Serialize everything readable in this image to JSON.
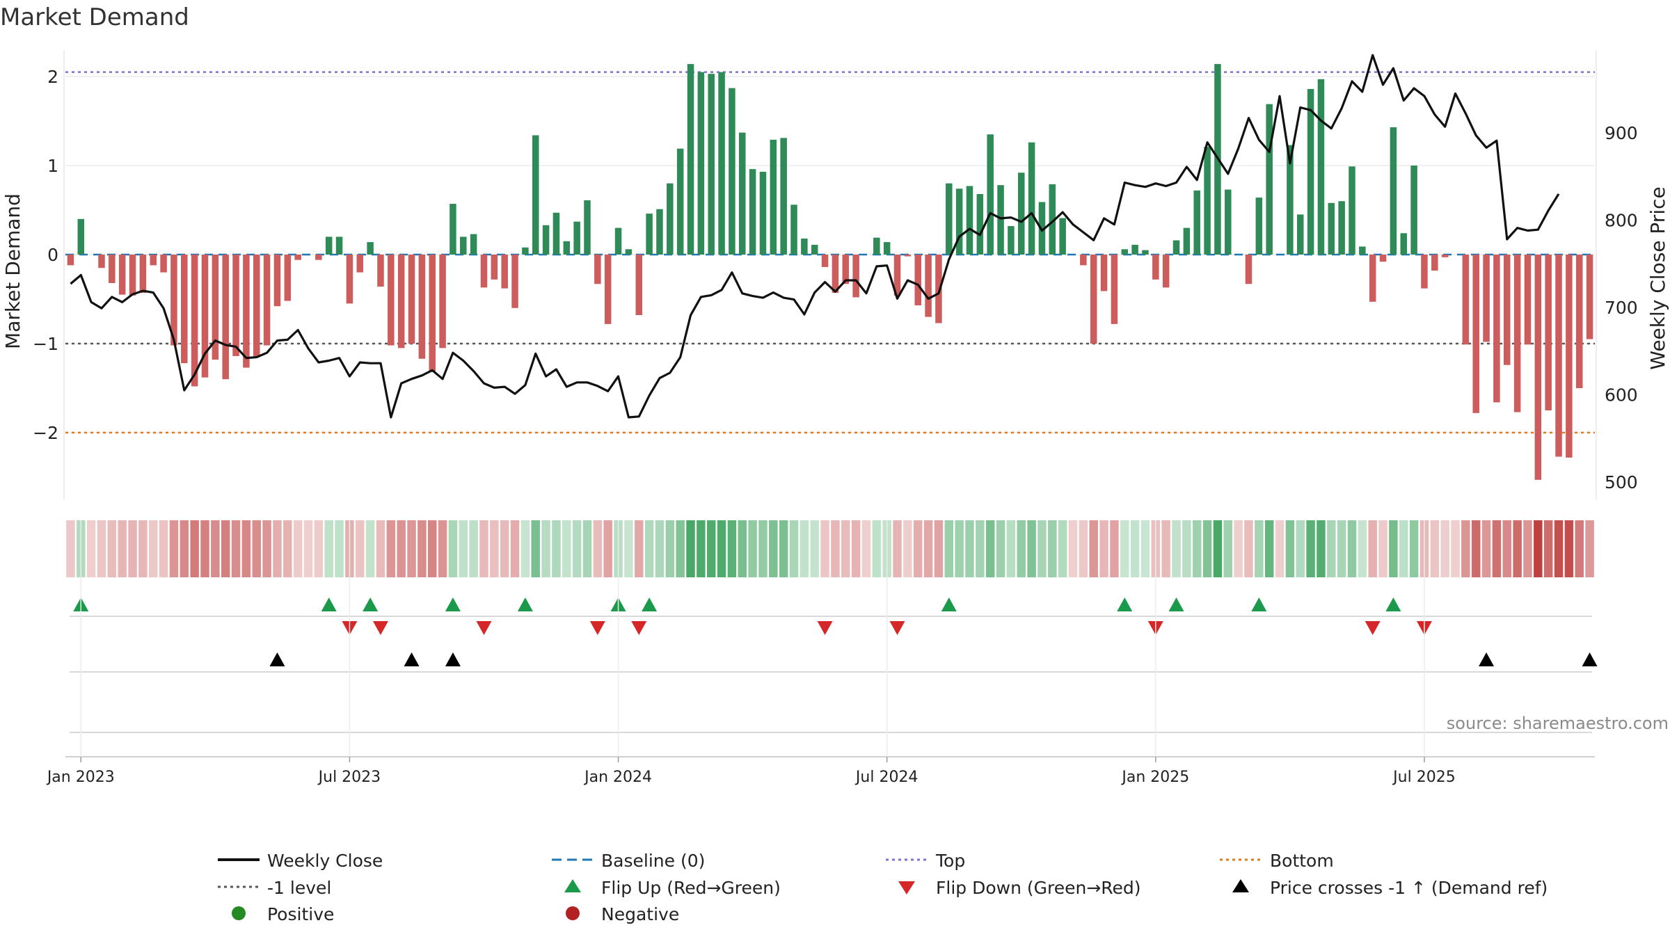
{
  "chart_data": {
    "type": "bar",
    "title": "Market Demand",
    "ylabel_left": "Market Demand",
    "ylabel_right": "Weekly Close Price",
    "source": "source: sharemaestro.com",
    "ylim_left": [
      -2.75,
      2.25
    ],
    "ylim_right": [
      480,
      990
    ],
    "yticks_left": [
      2,
      1,
      0,
      -1,
      -2
    ],
    "yticks_left_labels": [
      "2",
      "1",
      "0",
      "−1",
      "−2"
    ],
    "yticks_right": [
      900,
      800,
      700,
      600,
      500
    ],
    "yticks_right_labels": [
      "900",
      "800",
      "700",
      "600",
      "500"
    ],
    "xticks": [
      1,
      27,
      53,
      79,
      105,
      131
    ],
    "xtick_labels": [
      "Jan 2023",
      "Jul 2023",
      "Jan 2024",
      "Jul 2024",
      "Jan 2025",
      "Jul 2025"
    ],
    "reference_lines": {
      "top": 2.05,
      "minus_one": -1,
      "bottom": -2,
      "baseline": 0
    },
    "demand": [
      -0.12,
      0.4,
      0.0,
      -0.15,
      -0.32,
      -0.45,
      -0.46,
      -0.43,
      -0.12,
      -0.2,
      -1.02,
      -1.22,
      -1.48,
      -1.38,
      -1.18,
      -1.4,
      -1.14,
      -1.27,
      -1.14,
      -1.02,
      -0.58,
      -0.52,
      -0.06,
      0.0,
      -0.06,
      0.2,
      0.2,
      -0.55,
      -0.2,
      0.14,
      -0.36,
      -1.02,
      -1.05,
      -1.0,
      -1.17,
      -1.32,
      -1.05,
      0.57,
      0.2,
      0.23,
      -0.37,
      -0.28,
      -0.38,
      -0.6,
      0.08,
      1.34,
      0.33,
      0.47,
      0.15,
      0.37,
      0.61,
      -0.33,
      -0.78,
      0.3,
      0.06,
      -0.68,
      0.46,
      0.51,
      0.8,
      1.19,
      2.14,
      2.05,
      2.03,
      2.05,
      1.87,
      1.37,
      0.96,
      0.93,
      1.29,
      1.31,
      0.56,
      0.18,
      0.11,
      -0.14,
      -0.43,
      -0.33,
      -0.48,
      0.0,
      0.19,
      0.14,
      -0.46,
      -0.02,
      -0.57,
      -0.7,
      -0.77,
      0.8,
      0.74,
      0.77,
      0.68,
      1.35,
      0.78,
      0.32,
      0.92,
      1.26,
      0.59,
      0.79,
      0.41,
      0.0,
      -0.12,
      -1.0,
      -0.41,
      -0.78,
      0.06,
      0.11,
      0.05,
      -0.28,
      -0.37,
      0.16,
      0.3,
      0.72,
      1.21,
      2.14,
      0.73,
      0.0,
      -0.33,
      0.64,
      1.69,
      0.0,
      1.23,
      0.45,
      1.86,
      1.97,
      0.58,
      0.6,
      0.99,
      0.09,
      -0.53,
      -0.08,
      1.43,
      0.24,
      1.0,
      -0.38,
      -0.18,
      -0.03,
      0.0,
      -1.01,
      -1.78,
      -0.98,
      -1.66,
      -1.24,
      -1.77,
      -1.01,
      -2.53,
      -1.75,
      -2.27,
      -2.28,
      -1.5,
      -0.95
    ],
    "weekly_close": [
      727,
      737,
      706,
      699,
      712,
      706,
      715,
      719,
      717,
      699,
      663,
      605,
      623,
      647,
      662,
      657,
      655,
      642,
      643,
      648,
      662,
      663,
      674,
      653,
      637,
      639,
      642,
      621,
      637,
      636,
      636,
      574,
      613,
      618,
      622,
      628,
      618,
      648,
      639,
      627,
      613,
      608,
      609,
      601,
      611,
      647,
      621,
      629,
      609,
      614,
      614,
      610,
      604,
      621,
      574,
      575,
      599,
      619,
      625,
      643,
      691,
      712,
      714,
      720,
      740,
      716,
      713,
      711,
      717,
      711,
      709,
      692,
      717,
      729,
      718,
      731,
      731,
      716,
      747,
      748,
      710,
      731,
      726,
      710,
      716,
      755,
      781,
      790,
      783,
      808,
      802,
      803,
      798,
      808,
      788,
      798,
      809,
      795,
      786,
      777,
      802,
      795,
      843,
      840,
      838,
      842,
      839,
      843,
      861,
      846,
      889,
      871,
      853,
      882,
      917,
      892,
      878,
      942,
      865,
      929,
      926,
      914,
      905,
      928,
      959,
      947,
      989,
      955,
      974,
      937,
      951,
      942,
      921,
      907,
      945,
      922,
      897,
      883,
      891,
      778,
      791,
      788,
      789,
      811,
      830
    ]
  },
  "legend": {
    "weekly_close": "Weekly Close",
    "baseline": "Baseline (0)",
    "top": "Top",
    "bottom": "Bottom",
    "minus_one": "-1 level",
    "flip_up": "Flip Up (Red→Green)",
    "flip_down": "Flip Down (Green→Red)",
    "price_cross": "Price crosses -1 ↑ (Demand ref)",
    "positive": "Positive",
    "negative": "Negative"
  },
  "colors": {
    "positive_bar": "#2e8b57",
    "negative_bar": "#cd5c5c",
    "price_line": "#111111",
    "baseline": "#1f77b4",
    "top": "#7b72d6",
    "minus_one": "#555555",
    "bottom": "#e07b1f",
    "flip_up": "#1a9a4a",
    "flip_down": "#d62728",
    "price_cross": "#000000",
    "positive_dot": "#228b22",
    "negative_dot": "#b22222"
  }
}
